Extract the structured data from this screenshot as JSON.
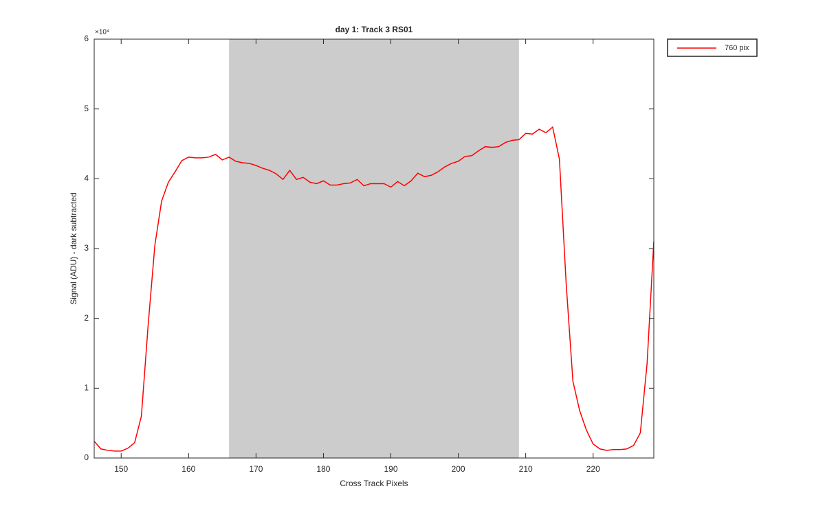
{
  "chart_data": {
    "type": "line",
    "title": "day 1: Track 3  RS01",
    "x_label": "Cross Track Pixels",
    "y_label": "Signal (ADU) - dark subtracted",
    "y_exponent_label": "×10⁴",
    "x": [
      146,
      147,
      148,
      149,
      150,
      151,
      152,
      153,
      154,
      155,
      156,
      157,
      158,
      159,
      160,
      161,
      162,
      163,
      164,
      165,
      166,
      167,
      168,
      169,
      170,
      171,
      172,
      173,
      174,
      175,
      176,
      177,
      178,
      179,
      180,
      181,
      182,
      183,
      184,
      185,
      186,
      187,
      188,
      189,
      190,
      191,
      192,
      193,
      194,
      195,
      196,
      197,
      198,
      199,
      200,
      201,
      202,
      203,
      204,
      205,
      206,
      207,
      208,
      209,
      210,
      211,
      212,
      213,
      214,
      215,
      216,
      217,
      218,
      219,
      220,
      221,
      222,
      223,
      224,
      225,
      226,
      227,
      228,
      229
    ],
    "series": [
      {
        "name": "760 pix",
        "color": "#ff0000",
        "values": [
          0.24,
          0.13,
          0.11,
          0.1,
          0.1,
          0.14,
          0.22,
          0.6,
          1.9,
          3.05,
          3.68,
          3.95,
          4.1,
          4.26,
          4.31,
          4.3,
          4.3,
          4.31,
          4.35,
          4.27,
          4.31,
          4.25,
          4.23,
          4.22,
          4.19,
          4.15,
          4.12,
          4.07,
          3.99,
          4.12,
          3.99,
          4.02,
          3.95,
          3.93,
          3.97,
          3.91,
          3.91,
          3.93,
          3.94,
          3.99,
          3.9,
          3.93,
          3.93,
          3.93,
          3.88,
          3.96,
          3.9,
          3.97,
          4.08,
          4.03,
          4.05,
          4.1,
          4.17,
          4.22,
          4.25,
          4.32,
          4.33,
          4.4,
          4.46,
          4.45,
          4.46,
          4.52,
          4.55,
          4.56,
          4.65,
          4.64,
          4.71,
          4.66,
          4.74,
          4.28,
          2.5,
          1.1,
          0.68,
          0.4,
          0.2,
          0.13,
          0.11,
          0.12,
          0.12,
          0.13,
          0.18,
          0.36,
          1.35,
          3.1
        ]
      }
    ],
    "shaded_region": [
      166,
      209
    ],
    "shaded_color": "#cccccc",
    "xlim": [
      146,
      229
    ],
    "xticks": [
      150,
      160,
      170,
      180,
      190,
      200,
      210,
      220
    ],
    "ylim": [
      0,
      6
    ],
    "yticks": [
      0,
      1,
      2,
      3,
      4,
      5,
      6
    ],
    "legend": "top-right-outside"
  }
}
